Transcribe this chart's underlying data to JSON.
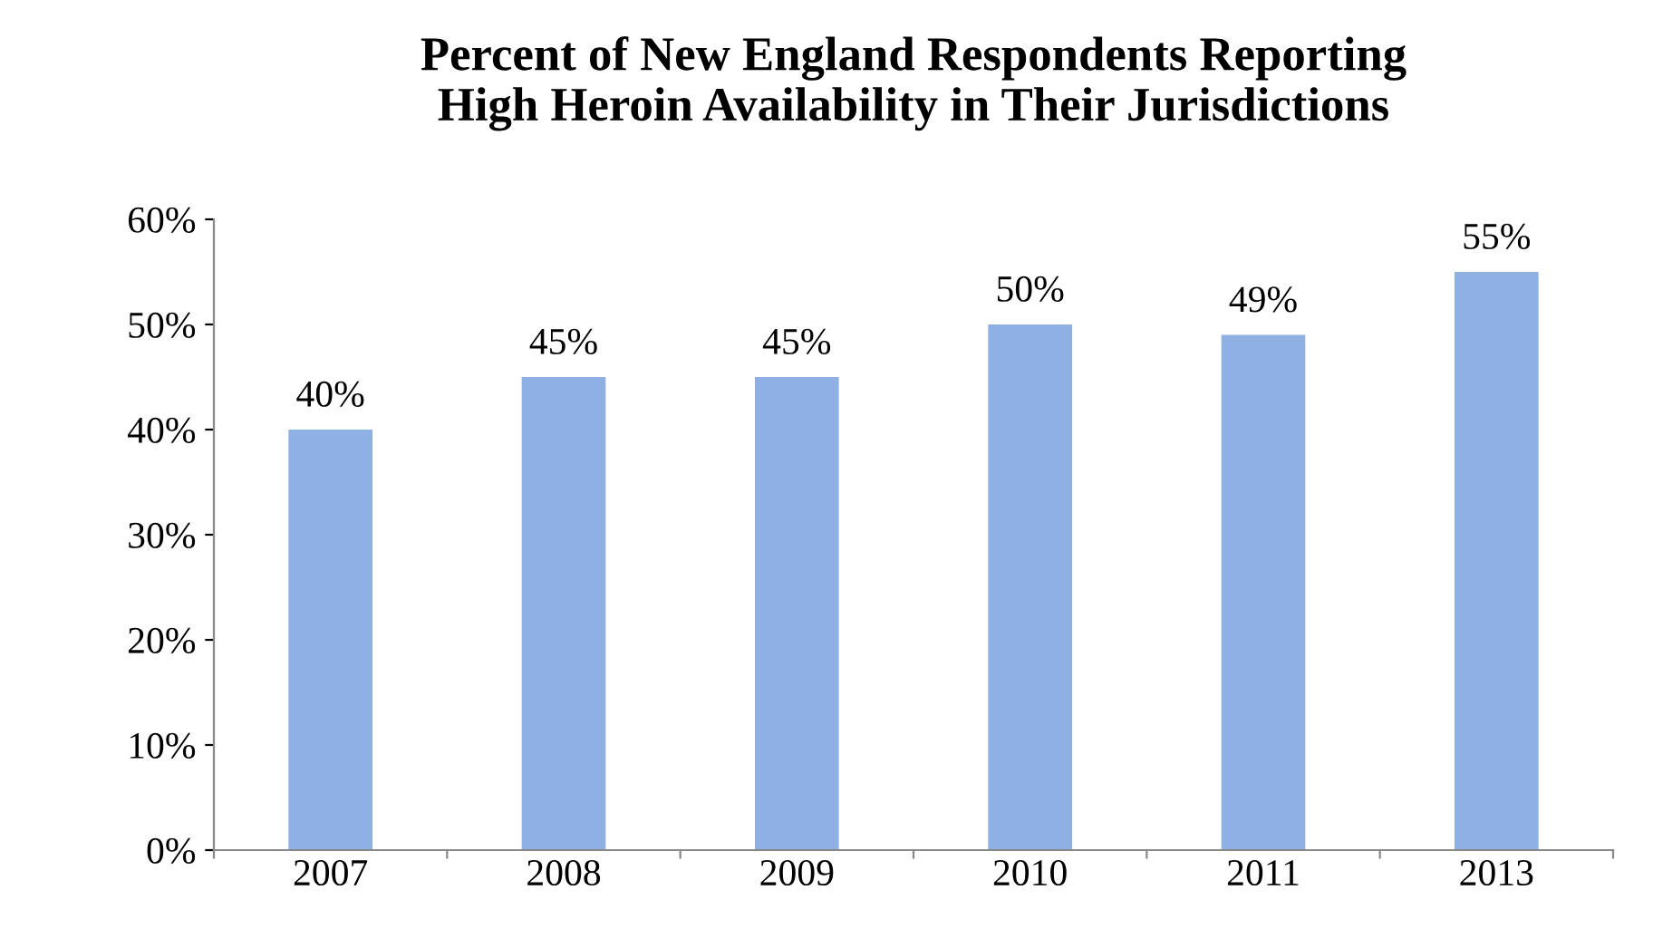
{
  "chart_data": {
    "type": "bar",
    "title": "Percent of New England Respondents Reporting\nHigh Heroin Availability in Their Jurisdictions",
    "categories": [
      "2007",
      "2008",
      "2009",
      "2010",
      "2011",
      "2013"
    ],
    "values": [
      40,
      45,
      45,
      50,
      49,
      55
    ],
    "value_labels": [
      "40%",
      "45%",
      "45%",
      "50%",
      "49%",
      "55%"
    ],
    "color": "#8eb0e2",
    "ylim": [
      0,
      60
    ],
    "yticks": [
      {
        "value": 0,
        "label": "0%"
      },
      {
        "value": 10,
        "label": "10%"
      },
      {
        "value": 20,
        "label": "20%"
      },
      {
        "value": 30,
        "label": "30%"
      },
      {
        "value": 40,
        "label": "40%"
      },
      {
        "value": 50,
        "label": "50%"
      },
      {
        "value": 60,
        "label": "60%"
      }
    ],
    "grid": false,
    "legend": false
  }
}
